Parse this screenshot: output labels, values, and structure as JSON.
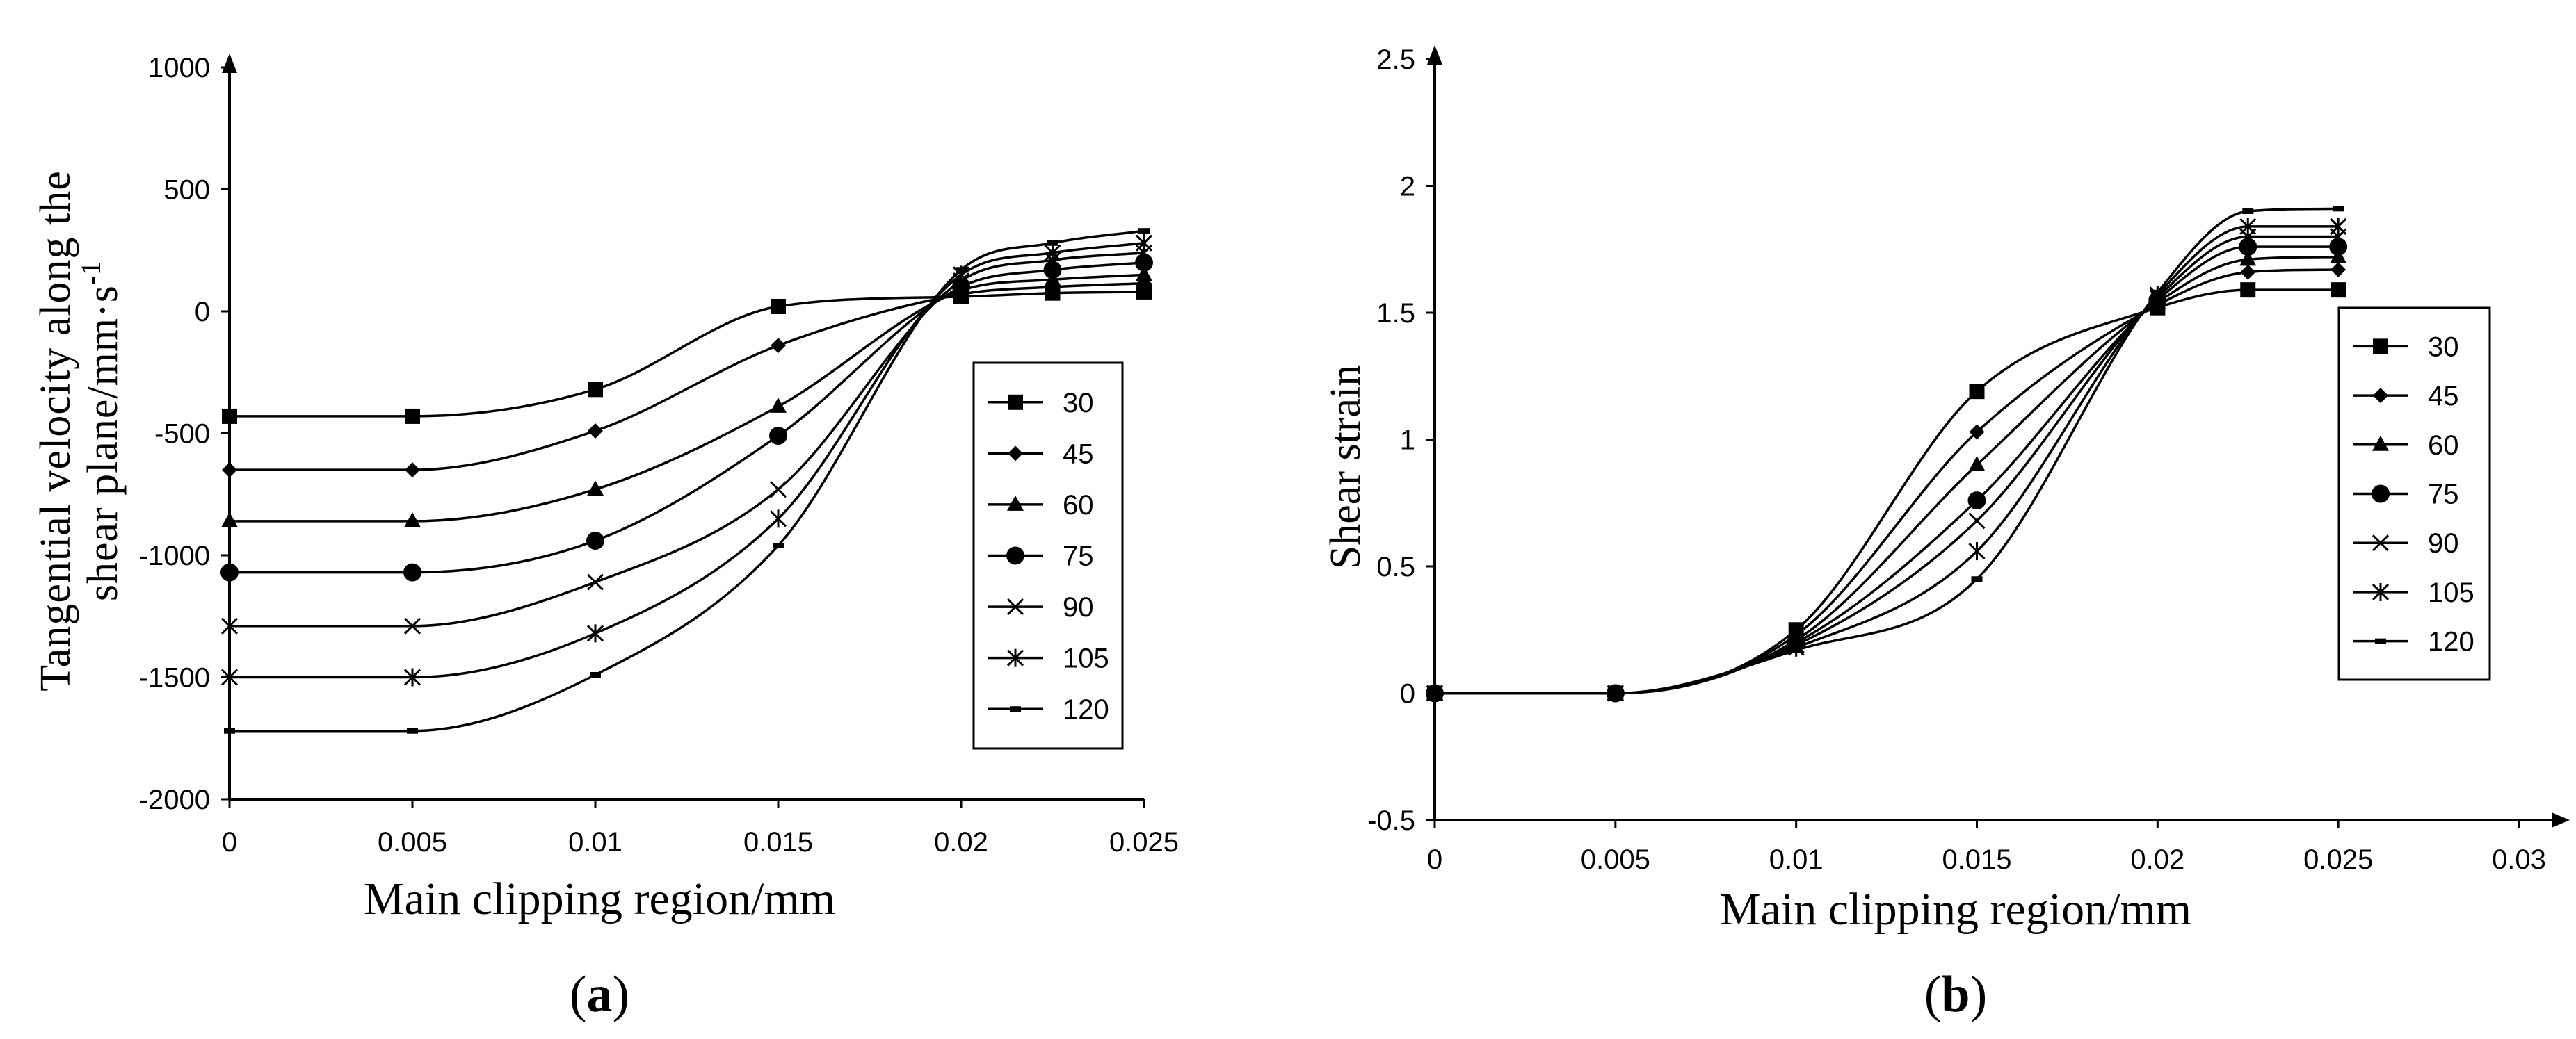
{
  "chart_data": [
    {
      "type": "line",
      "panel_label": "a",
      "xlabel": "Main clipping region/mm",
      "ylabel_line1": "Tangential velocity along the",
      "ylabel_line2": "shear plane/mm·s",
      "ylabel_sup": "-1",
      "xlim": [
        0,
        0.025
      ],
      "ylim": [
        -2000,
        1000
      ],
      "xticks": [
        0,
        0.005,
        0.01,
        0.015,
        0.02,
        0.025
      ],
      "xtick_labels": [
        "0",
        "0.005",
        "0.01",
        "0.015",
        "0.02",
        "0.025"
      ],
      "yticks": [
        1000,
        500,
        0,
        -500,
        -1000,
        -1500,
        -2000
      ],
      "ytick_labels": [
        "1000",
        "500",
        "0",
        "-500",
        "-1000",
        "-1500",
        "-2000"
      ],
      "x": [
        0,
        0.005,
        0.01,
        0.015,
        0.02,
        0.0225,
        0.025
      ],
      "legend_position": "right-middle",
      "series": [
        {
          "name": "30",
          "marker": "square",
          "values": [
            -430,
            -430,
            -320,
            20,
            60,
            75,
            80
          ]
        },
        {
          "name": "45",
          "marker": "diamond",
          "values": [
            -650,
            -650,
            -490,
            -140,
            70,
            100,
            115
          ]
        },
        {
          "name": "60",
          "marker": "triangle",
          "values": [
            -860,
            -860,
            -730,
            -390,
            85,
            130,
            150
          ]
        },
        {
          "name": "75",
          "marker": "circle",
          "values": [
            -1070,
            -1070,
            -940,
            -510,
            100,
            170,
            200
          ]
        },
        {
          "name": "90",
          "marker": "x",
          "values": [
            -1290,
            -1290,
            -1110,
            -730,
            125,
            210,
            240
          ]
        },
        {
          "name": "105",
          "marker": "star",
          "values": [
            -1500,
            -1500,
            -1320,
            -850,
            150,
            240,
            280
          ]
        },
        {
          "name": "120",
          "marker": "dash",
          "values": [
            -1720,
            -1720,
            -1490,
            -960,
            170,
            280,
            330
          ]
        }
      ]
    },
    {
      "type": "line",
      "panel_label": "b",
      "xlabel": "Main clipping region/mm",
      "ylabel": "Shear strain",
      "xlim": [
        0,
        0.03
      ],
      "ylim": [
        -0.5,
        2.5
      ],
      "xticks": [
        0,
        0.005,
        0.01,
        0.015,
        0.02,
        0.025,
        0.03
      ],
      "xtick_labels": [
        "0",
        "0.005",
        "0.01",
        "0.015",
        "0.02",
        "0.025",
        "0.03"
      ],
      "yticks": [
        2.5,
        2,
        1.5,
        1,
        0.5,
        0,
        -0.5
      ],
      "ytick_labels": [
        "2.5",
        "2",
        "1.5",
        "1",
        "0.5",
        "0",
        "-0.5"
      ],
      "x": [
        0,
        0.005,
        0.01,
        0.015,
        0.02,
        0.0225,
        0.025
      ],
      "legend_position": "right",
      "series": [
        {
          "name": "30",
          "marker": "square",
          "values": [
            0,
            0,
            0.25,
            1.19,
            1.52,
            1.59,
            1.59
          ]
        },
        {
          "name": "45",
          "marker": "diamond",
          "values": [
            0,
            0,
            0.23,
            1.03,
            1.53,
            1.66,
            1.67
          ]
        },
        {
          "name": "60",
          "marker": "triangle",
          "values": [
            0,
            0,
            0.21,
            0.9,
            1.54,
            1.71,
            1.72
          ]
        },
        {
          "name": "75",
          "marker": "circle",
          "values": [
            0,
            0,
            0.2,
            0.76,
            1.55,
            1.76,
            1.76
          ]
        },
        {
          "name": "90",
          "marker": "x",
          "values": [
            0,
            0,
            0.19,
            0.68,
            1.56,
            1.8,
            1.8
          ]
        },
        {
          "name": "105",
          "marker": "star",
          "values": [
            0,
            0,
            0.18,
            0.56,
            1.57,
            1.84,
            1.84
          ]
        },
        {
          "name": "120",
          "marker": "dash",
          "values": [
            0,
            0,
            0.17,
            0.45,
            1.58,
            1.9,
            1.91
          ]
        }
      ]
    }
  ]
}
